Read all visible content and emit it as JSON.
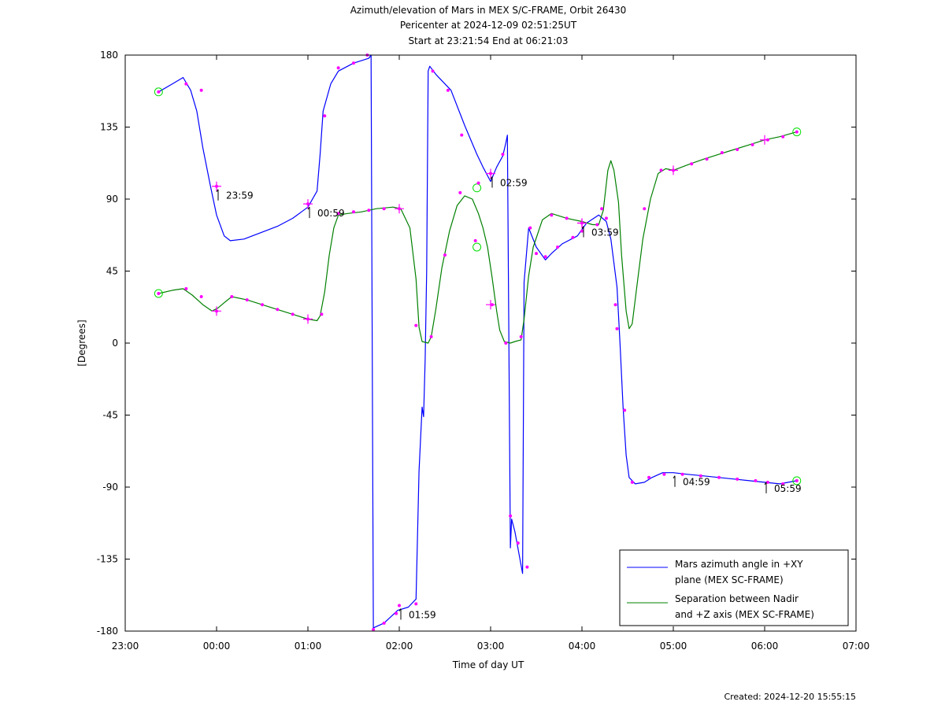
{
  "chart_data": {
    "type": "line",
    "title": [
      "Azimuth/elevation of Mars in MEX S/C-FRAME,  Orbit 26430",
      "Pericenter at 2024-12-09 02:51:25UT",
      "Start at 23:21:54 End at 06:21:03"
    ],
    "xlabel": "Time of day UT",
    "ylabel": "[Degrees]",
    "xlim": [
      -60,
      420
    ],
    "ylim": [
      -180,
      180
    ],
    "x_unit": "minutes after 2024-12-09 00:00 UT",
    "x_ticks": [
      {
        "v": -60,
        "label": "23:00"
      },
      {
        "v": 0,
        "label": "00:00"
      },
      {
        "v": 60,
        "label": "01:00"
      },
      {
        "v": 120,
        "label": "02:00"
      },
      {
        "v": 180,
        "label": "03:00"
      },
      {
        "v": 240,
        "label": "04:00"
      },
      {
        "v": 300,
        "label": "05:00"
      },
      {
        "v": 360,
        "label": "06:00"
      },
      {
        "v": 420,
        "label": "07:00"
      }
    ],
    "y_ticks": [
      180,
      135,
      90,
      45,
      0,
      -45,
      -90,
      -135,
      -180
    ],
    "grid": false,
    "legend_position": "bottom-right",
    "series": [
      {
        "name": "Mars azimuth angle in +XY plane (MEX SC-FRAME)",
        "legend_lines": [
          "Mars azimuth angle in +XY",
          "plane (MEX SC-FRAME)"
        ],
        "color": "#0000ff",
        "points": [
          [
            -38.1,
            157
          ],
          [
            -29,
            162
          ],
          [
            -22,
            166
          ],
          [
            -17,
            158
          ],
          [
            -13,
            145
          ],
          [
            -9,
            122
          ],
          [
            -4,
            98
          ],
          [
            0,
            80
          ],
          [
            5,
            67
          ],
          [
            9,
            64
          ],
          [
            18,
            65
          ],
          [
            29,
            69
          ],
          [
            40,
            73
          ],
          [
            50,
            78
          ],
          [
            60,
            85
          ],
          [
            66,
            95
          ],
          [
            68,
            118
          ],
          [
            70,
            145
          ],
          [
            75,
            162
          ],
          [
            80,
            170
          ],
          [
            90,
            175
          ],
          [
            100,
            178
          ],
          [
            101.5,
            180
          ],
          [
            103,
            -178
          ],
          [
            110,
            -175
          ],
          [
            119,
            -167
          ],
          [
            126,
            -165
          ],
          [
            131,
            -160
          ],
          [
            133,
            -80
          ],
          [
            135,
            -40
          ],
          [
            136,
            -46
          ],
          [
            137,
            -10
          ],
          [
            138,
            45
          ],
          [
            139,
            170
          ],
          [
            140,
            173
          ],
          [
            144,
            168
          ],
          [
            154,
            158
          ],
          [
            163,
            136
          ],
          [
            171,
            118
          ],
          [
            175,
            110
          ],
          [
            180,
            101
          ],
          [
            184,
            110
          ],
          [
            188,
            117
          ],
          [
            190,
            125
          ],
          [
            191,
            130
          ],
          [
            193,
            -128
          ],
          [
            193.8,
            -110
          ],
          [
            196,
            -118
          ],
          [
            201,
            -144
          ],
          [
            202,
            38
          ],
          [
            205,
            72
          ],
          [
            210,
            60
          ],
          [
            216,
            52
          ],
          [
            220,
            56
          ],
          [
            227,
            62
          ],
          [
            237,
            67
          ],
          [
            243,
            75
          ],
          [
            251,
            80
          ],
          [
            256,
            76
          ],
          [
            259,
            65
          ],
          [
            263,
            35
          ],
          [
            265,
            0
          ],
          [
            267,
            -40
          ],
          [
            269,
            -70
          ],
          [
            271,
            -84
          ],
          [
            275,
            -88
          ],
          [
            281,
            -87
          ],
          [
            286,
            -84
          ],
          [
            293,
            -81
          ],
          [
            300,
            -81
          ],
          [
            309,
            -82
          ],
          [
            320,
            -83
          ],
          [
            330,
            -84
          ],
          [
            340,
            -85
          ],
          [
            350,
            -86
          ],
          [
            360,
            -87
          ],
          [
            370,
            -88
          ],
          [
            381.1,
            -86
          ]
        ],
        "markers": [
          [
            -38.1,
            157
          ],
          [
            -20,
            162
          ],
          [
            -10,
            158
          ],
          [
            0,
            98
          ],
          [
            60,
            87
          ],
          [
            71,
            142
          ],
          [
            80,
            172
          ],
          [
            90,
            175
          ],
          [
            99,
            180
          ],
          [
            103,
            -179
          ],
          [
            110,
            -175
          ],
          [
            118,
            -169
          ],
          [
            120,
            -164
          ],
          [
            131,
            -163
          ],
          [
            142,
            170
          ],
          [
            152,
            158
          ],
          [
            161,
            130
          ],
          [
            172,
            100
          ],
          [
            180,
            106
          ],
          [
            188,
            118
          ],
          [
            193,
            -108
          ],
          [
            198,
            -125
          ],
          [
            204,
            -140
          ],
          [
            206,
            72
          ],
          [
            216,
            54
          ],
          [
            224,
            60
          ],
          [
            234,
            66
          ],
          [
            240,
            70
          ],
          [
            250,
            74
          ],
          [
            256,
            78
          ],
          [
            262,
            24
          ],
          [
            268,
            -42
          ],
          [
            273,
            -87
          ],
          [
            284,
            -84
          ],
          [
            294,
            -82
          ],
          [
            306,
            -82
          ],
          [
            318,
            -83
          ],
          [
            330,
            -84
          ],
          [
            342,
            -85
          ],
          [
            354,
            -86
          ],
          [
            362,
            -87
          ],
          [
            372,
            -88
          ],
          [
            381.1,
            -86
          ]
        ],
        "crosses": [
          [
            0,
            98
          ],
          [
            60,
            87
          ],
          [
            180,
            106
          ],
          [
            240,
            75
          ]
        ]
      },
      {
        "name": "Separation between Nadir and +Z axis (MEX SC-FRAME)",
        "legend_lines": [
          "Separation between Nadir",
          "and +Z axis (MEX SC-FRAME)"
        ],
        "color": "#008000",
        "points": [
          [
            -38.1,
            31
          ],
          [
            -29,
            33
          ],
          [
            -22,
            34
          ],
          [
            -16,
            30
          ],
          [
            -9,
            24
          ],
          [
            -3,
            20
          ],
          [
            1,
            22
          ],
          [
            6,
            26
          ],
          [
            10,
            29
          ],
          [
            20,
            27
          ],
          [
            30,
            24
          ],
          [
            40,
            21
          ],
          [
            50,
            18
          ],
          [
            60,
            15
          ],
          [
            66,
            14
          ],
          [
            68,
            17
          ],
          [
            71,
            32
          ],
          [
            74,
            55
          ],
          [
            77,
            72
          ],
          [
            80,
            80
          ],
          [
            86,
            81
          ],
          [
            95,
            82
          ],
          [
            105,
            84
          ],
          [
            116,
            85
          ],
          [
            121,
            84
          ],
          [
            127,
            72
          ],
          [
            131,
            40
          ],
          [
            133,
            10
          ],
          [
            135,
            1
          ],
          [
            139,
            0
          ],
          [
            141,
            4
          ],
          [
            144,
            21
          ],
          [
            148,
            47
          ],
          [
            153,
            70
          ],
          [
            158,
            86
          ],
          [
            163,
            92
          ],
          [
            168,
            90
          ],
          [
            172,
            81
          ],
          [
            175,
            72
          ],
          [
            178,
            60
          ],
          [
            181,
            41
          ],
          [
            184,
            20
          ],
          [
            186,
            8
          ],
          [
            189,
            1
          ],
          [
            193,
            0
          ],
          [
            196,
            1
          ],
          [
            200,
            2
          ],
          [
            202,
            15
          ],
          [
            205,
            42
          ],
          [
            208,
            60
          ],
          [
            214,
            77
          ],
          [
            220,
            81
          ],
          [
            230,
            78
          ],
          [
            240,
            76
          ],
          [
            247,
            74
          ],
          [
            251,
            74
          ],
          [
            254,
            83
          ],
          [
            257,
            108
          ],
          [
            259,
            114
          ],
          [
            261,
            108
          ],
          [
            264,
            88
          ],
          [
            266,
            55
          ],
          [
            269,
            20
          ],
          [
            271,
            9
          ],
          [
            273,
            12
          ],
          [
            276,
            35
          ],
          [
            280,
            65
          ],
          [
            285,
            90
          ],
          [
            290,
            106
          ],
          [
            295,
            109
          ],
          [
            300,
            108
          ],
          [
            311,
            112
          ],
          [
            320,
            115
          ],
          [
            330,
            118
          ],
          [
            340,
            121
          ],
          [
            350,
            124
          ],
          [
            360,
            127
          ],
          [
            370,
            129
          ],
          [
            381.1,
            132
          ]
        ],
        "markers": [
          [
            -38.1,
            31
          ],
          [
            -20,
            34
          ],
          [
            -10,
            29
          ],
          [
            0,
            20
          ],
          [
            10,
            29
          ],
          [
            20,
            27
          ],
          [
            30,
            24
          ],
          [
            40,
            21
          ],
          [
            50,
            18
          ],
          [
            60,
            15
          ],
          [
            69,
            18
          ],
          [
            80,
            81
          ],
          [
            90,
            82
          ],
          [
            100,
            83
          ],
          [
            110,
            84
          ],
          [
            120,
            84
          ],
          [
            131,
            11
          ],
          [
            141,
            4
          ],
          [
            150,
            55
          ],
          [
            160,
            94
          ],
          [
            170,
            64
          ],
          [
            181,
            24
          ],
          [
            190,
            0
          ],
          [
            200,
            4
          ],
          [
            210,
            56
          ],
          [
            220,
            80
          ],
          [
            230,
            78
          ],
          [
            240,
            75
          ],
          [
            253,
            84
          ],
          [
            263,
            9
          ],
          [
            281,
            84
          ],
          [
            292,
            108
          ],
          [
            300,
            108
          ],
          [
            312,
            112
          ],
          [
            322,
            115
          ],
          [
            332,
            119
          ],
          [
            342,
            121
          ],
          [
            352,
            124
          ],
          [
            362,
            127
          ],
          [
            372,
            129
          ],
          [
            381.1,
            132
          ]
        ],
        "crosses": [
          [
            0,
            20
          ],
          [
            60,
            15
          ],
          [
            120,
            84
          ],
          [
            180,
            24
          ],
          [
            240,
            75
          ],
          [
            300,
            108
          ],
          [
            360,
            127
          ]
        ]
      }
    ],
    "circles": [
      [
        -38.1,
        157
      ],
      [
        -38.1,
        31
      ],
      [
        171,
        97
      ],
      [
        171,
        60
      ],
      [
        381.1,
        132
      ],
      [
        381.1,
        -86
      ]
    ],
    "time_marks": [
      {
        "x": 0,
        "y": 98,
        "label": "23:59"
      },
      {
        "x": 60,
        "y": 87,
        "label": "00:59"
      },
      {
        "x": 120,
        "y": -164,
        "label": "01:59"
      },
      {
        "x": 180,
        "y": 106,
        "label": "02:59"
      },
      {
        "x": 240,
        "y": 75,
        "label": "03:59"
      },
      {
        "x": 300,
        "y": -81,
        "label": "04:59"
      },
      {
        "x": 360,
        "y": -85,
        "label": "05:59"
      }
    ]
  },
  "footer": {
    "created": "Created: 2024-12-20 15:55:15"
  }
}
